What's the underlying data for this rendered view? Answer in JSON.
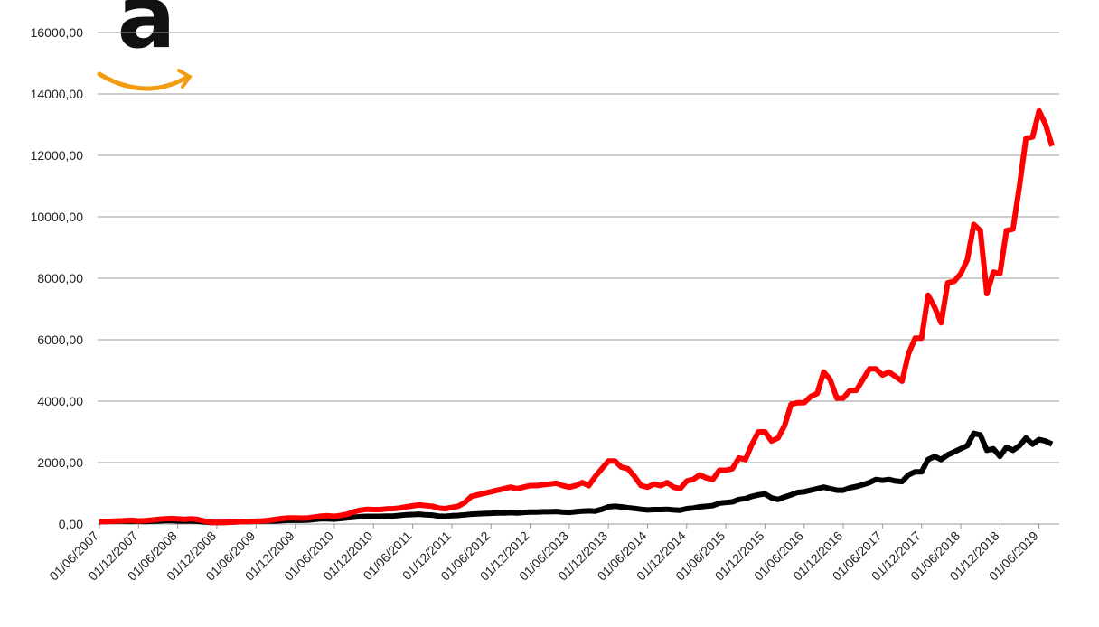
{
  "chart_data": {
    "type": "line",
    "logo": "a",
    "categories": [
      "01/06/2007",
      null,
      null,
      null,
      null,
      null,
      "01/12/2007",
      null,
      null,
      null,
      null,
      null,
      "01/06/2008",
      null,
      null,
      null,
      null,
      null,
      "01/12/2008",
      null,
      null,
      null,
      null,
      null,
      "01/06/2009",
      null,
      null,
      null,
      null,
      null,
      "01/12/2009",
      null,
      null,
      null,
      null,
      null,
      "01/06/2010",
      null,
      null,
      null,
      null,
      null,
      "01/12/2010",
      null,
      null,
      null,
      null,
      null,
      "01/06/2011",
      null,
      null,
      null,
      null,
      null,
      "01/12/2011",
      null,
      null,
      null,
      null,
      null,
      "01/06/2012",
      null,
      null,
      null,
      null,
      null,
      "01/12/2012",
      null,
      null,
      null,
      null,
      null,
      "01/06/2013",
      null,
      null,
      null,
      null,
      null,
      "01/12/2013",
      null,
      null,
      null,
      null,
      null,
      "01/06/2014",
      null,
      null,
      null,
      null,
      null,
      "01/12/2014",
      null,
      null,
      null,
      null,
      null,
      "01/06/2015",
      null,
      null,
      null,
      null,
      null,
      "01/12/2015",
      null,
      null,
      null,
      null,
      null,
      "01/06/2016",
      null,
      null,
      null,
      null,
      null,
      "01/12/2016",
      null,
      null,
      null,
      null,
      null,
      "01/06/2017",
      null,
      null,
      null,
      null,
      null,
      "01/12/2017",
      null,
      null,
      null,
      null,
      null,
      "01/06/2018",
      null,
      null,
      null,
      null,
      null,
      "01/12/2018",
      null,
      null,
      null,
      null,
      null,
      "01/06/2019",
      null,
      null
    ],
    "series": [
      {
        "color": "#ff0000",
        "values": [
          70,
          80,
          90,
          100,
          110,
          120,
          100,
          110,
          130,
          150,
          170,
          180,
          170,
          150,
          170,
          150,
          100,
          60,
          50,
          50,
          60,
          70,
          80,
          80,
          90,
          100,
          120,
          150,
          180,
          200,
          200,
          190,
          200,
          230,
          260,
          270,
          250,
          280,
          320,
          400,
          450,
          480,
          470,
          470,
          490,
          500,
          520,
          560,
          590,
          620,
          600,
          580,
          520,
          500,
          540,
          580,
          700,
          900,
          950,
          1000,
          1050,
          1100,
          1150,
          1200,
          1150,
          1200,
          1250,
          1250,
          1280,
          1300,
          1330,
          1250,
          1200,
          1250,
          1350,
          1250,
          1550,
          1800,
          2050,
          2050,
          1850,
          1800,
          1550,
          1250,
          1200,
          1300,
          1250,
          1350,
          1200,
          1150,
          1400,
          1450,
          1600,
          1500,
          1450,
          1750,
          1750,
          1800,
          2150,
          2100,
          2600,
          3000,
          3000,
          2700,
          2800,
          3200,
          3900,
          3950,
          3950,
          4150,
          4250,
          4950,
          4700,
          4100,
          4100,
          4350,
          4350,
          4700,
          5050,
          5050,
          4850,
          4950,
          4800,
          4650,
          5550,
          6050,
          6050,
          7450,
          7050,
          6550,
          7850,
          7900,
          8150,
          8600,
          9750,
          9550,
          7500,
          8200,
          8150,
          9550,
          9600,
          11000,
          12550,
          12600,
          13450,
          13000,
          12300
        ]
      },
      {
        "color": "#000000",
        "values": [
          70,
          80,
          90,
          90,
          90,
          90,
          90,
          80,
          90,
          100,
          110,
          110,
          100,
          100,
          100,
          90,
          70,
          50,
          50,
          50,
          60,
          70,
          80,
          80,
          90,
          90,
          100,
          100,
          110,
          120,
          120,
          120,
          130,
          150,
          170,
          170,
          160,
          180,
          200,
          220,
          240,
          250,
          250,
          250,
          260,
          260,
          280,
          300,
          310,
          320,
          300,
          290,
          260,
          250,
          270,
          280,
          300,
          320,
          330,
          340,
          350,
          360,
          360,
          370,
          360,
          380,
          390,
          390,
          400,
          400,
          410,
          390,
          380,
          400,
          420,
          430,
          420,
          480,
          560,
          580,
          560,
          530,
          510,
          480,
          460,
          470,
          470,
          480,
          460,
          450,
          500,
          520,
          560,
          580,
          600,
          680,
          700,
          720,
          800,
          830,
          900,
          950,
          980,
          850,
          800,
          880,
          950,
          1030,
          1050,
          1100,
          1150,
          1200,
          1150,
          1100,
          1100,
          1180,
          1220,
          1280,
          1350,
          1450,
          1420,
          1450,
          1400,
          1380,
          1600,
          1700,
          1700,
          2100,
          2200,
          2100,
          2250,
          2350,
          2450,
          2550,
          2950,
          2900,
          2400,
          2450,
          2200,
          2500,
          2400,
          2550,
          2800,
          2600,
          2750,
          2700,
          2600
        ]
      }
    ],
    "ylim": [
      0,
      16000
    ],
    "yticks": [
      {
        "value": 0,
        "label": "0,00"
      },
      {
        "value": 2000,
        "label": "2000,00"
      },
      {
        "value": 4000,
        "label": "4000,00"
      },
      {
        "value": 6000,
        "label": "6000,00"
      },
      {
        "value": 8000,
        "label": "8000,00"
      },
      {
        "value": 10000,
        "label": "10000,00"
      },
      {
        "value": 12000,
        "label": "12000,00"
      },
      {
        "value": 14000,
        "label": "14000,00"
      },
      {
        "value": 16000,
        "label": "16000,00"
      }
    ],
    "grid": true
  }
}
